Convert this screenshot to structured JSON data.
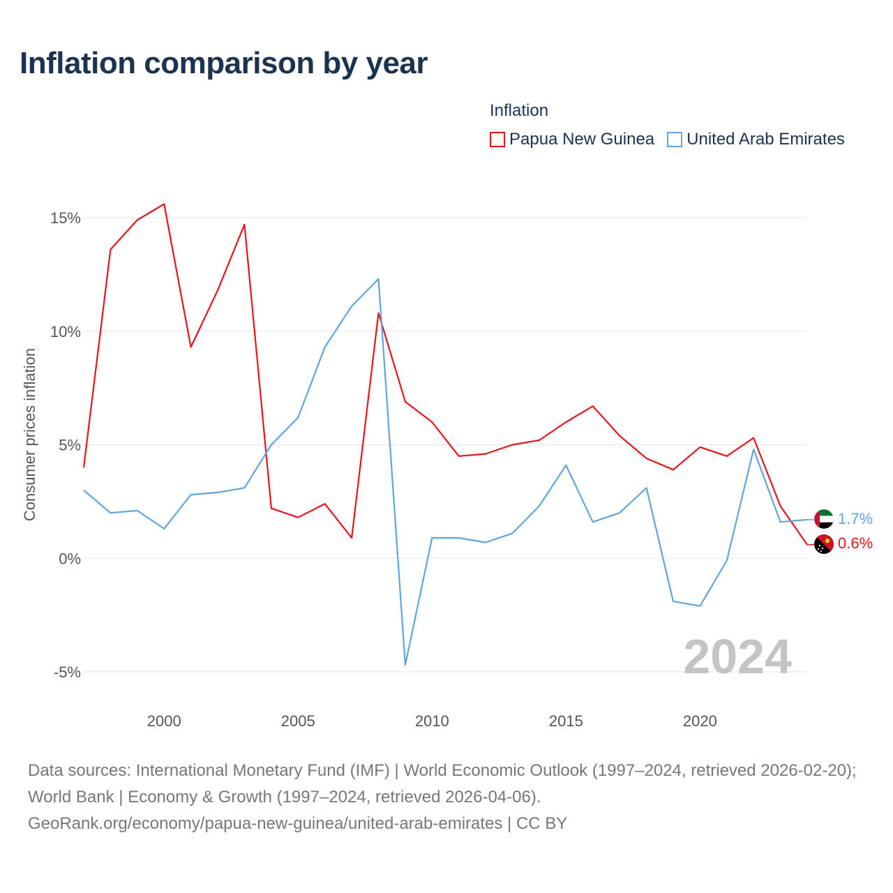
{
  "title": "Inflation comparison by year",
  "legend": {
    "title": "Inflation",
    "items": [
      {
        "label": "Papua New Guinea",
        "color": "#e8141a"
      },
      {
        "label": "United Arab Emirates",
        "color": "#5fa4e0"
      }
    ]
  },
  "chart_data": {
    "type": "line",
    "title": "Inflation comparison by year",
    "xlabel": "",
    "ylabel": "Consumer prices inflation",
    "x": [
      1997,
      1998,
      1999,
      2000,
      2001,
      2002,
      2003,
      2004,
      2005,
      2006,
      2007,
      2008,
      2009,
      2010,
      2011,
      2012,
      2013,
      2014,
      2015,
      2016,
      2017,
      2018,
      2019,
      2020,
      2021,
      2022,
      2023,
      2024
    ],
    "xlim": [
      1997,
      2024
    ],
    "ylim": [
      -5,
      15
    ],
    "x_ticks": [
      2000,
      2005,
      2010,
      2015,
      2020
    ],
    "x_tick_labels": [
      "2000",
      "2005",
      "2010",
      "2015",
      "2020"
    ],
    "y_ticks": [
      15,
      10,
      5,
      0,
      -5
    ],
    "y_tick_labels": [
      "15%",
      "10%",
      "5%",
      "0%",
      "-5%"
    ],
    "grid": true,
    "watermark": "2024",
    "series": [
      {
        "name": "Papua New Guinea",
        "color": "#e8141a",
        "end_label": "0.6%",
        "values": [
          4.0,
          13.6,
          14.9,
          15.6,
          9.3,
          11.8,
          14.7,
          2.2,
          1.8,
          2.4,
          0.9,
          10.8,
          6.9,
          6.0,
          4.5,
          4.6,
          5.0,
          5.2,
          6.0,
          6.7,
          5.4,
          4.4,
          3.9,
          4.9,
          4.5,
          5.3,
          2.3,
          0.6
        ]
      },
      {
        "name": "United Arab Emirates",
        "color": "#5fa4e0",
        "end_label": "1.7%",
        "values": [
          3.0,
          2.0,
          2.1,
          1.3,
          2.8,
          2.9,
          3.1,
          5.0,
          6.2,
          9.3,
          11.1,
          12.3,
          -4.7,
          0.9,
          0.9,
          0.7,
          1.1,
          2.3,
          4.1,
          1.6,
          2.0,
          3.1,
          -1.9,
          -2.1,
          -0.1,
          4.8,
          1.6,
          1.7
        ]
      }
    ]
  },
  "footer": {
    "line1": "Data sources: International Monetary Fund (IMF) | World Economic Outlook (1997–2024, retrieved 2026-02-20); World Bank | Economy & Growth (1997–2024, retrieved 2026-04-06).",
    "line2": "GeoRank.org/economy/papua-new-guinea/united-arab-emirates | CC BY"
  }
}
